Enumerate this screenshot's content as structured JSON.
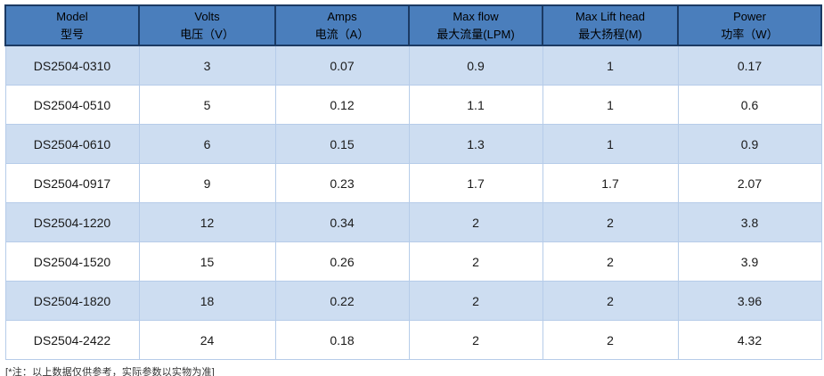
{
  "table": {
    "columns": [
      {
        "en": "Model",
        "zh": "型号"
      },
      {
        "en": "Volts",
        "zh": "电压（V）"
      },
      {
        "en": "Amps",
        "zh": "电流（A）"
      },
      {
        "en": "Max flow",
        "zh": "最大流量(LPM)"
      },
      {
        "en": "Max Lift head",
        "zh": "最大扬程(M)"
      },
      {
        "en": "Power",
        "zh": "功率（W）"
      }
    ],
    "rows": [
      [
        "DS2504-0310",
        "3",
        "0.07",
        "0.9",
        "1",
        "0.17"
      ],
      [
        "DS2504-0510",
        "5",
        "0.12",
        "1.1",
        "1",
        "0.6"
      ],
      [
        "DS2504-0610",
        "6",
        "0.15",
        "1.3",
        "1",
        "0.9"
      ],
      [
        "DS2504-0917",
        "9",
        "0.23",
        "1.7",
        "1.7",
        "2.07"
      ],
      [
        "DS2504-1220",
        "12",
        "0.34",
        "2",
        "2",
        "3.8"
      ],
      [
        "DS2504-1520",
        "15",
        "0.26",
        "2",
        "2",
        "3.9"
      ],
      [
        "DS2504-1820",
        "18",
        "0.22",
        "2",
        "2",
        "3.96"
      ],
      [
        "DS2504-2422",
        "24",
        "0.18",
        "2",
        "2",
        "4.32"
      ]
    ],
    "footnote": "[*注：以上数据仅供参考，实际参数以实物为准]"
  },
  "chart_data": {
    "type": "table",
    "title": "",
    "columns": [
      "Model 型号",
      "Volts 电压（V）",
      "Amps 电流（A）",
      "Max flow 最大流量(LPM)",
      "Max Lift head 最大扬程(M)",
      "Power 功率（W）"
    ],
    "rows": [
      [
        "DS2504-0310",
        3,
        0.07,
        0.9,
        1,
        0.17
      ],
      [
        "DS2504-0510",
        5,
        0.12,
        1.1,
        1,
        0.6
      ],
      [
        "DS2504-0610",
        6,
        0.15,
        1.3,
        1,
        0.9
      ],
      [
        "DS2504-0917",
        9,
        0.23,
        1.7,
        1.7,
        2.07
      ],
      [
        "DS2504-1220",
        12,
        0.34,
        2,
        2,
        3.8
      ],
      [
        "DS2504-1520",
        15,
        0.26,
        2,
        2,
        3.9
      ],
      [
        "DS2504-1820",
        18,
        0.22,
        2,
        2,
        3.96
      ],
      [
        "DS2504-2422",
        24,
        0.18,
        2,
        2,
        4.32
      ]
    ]
  },
  "colors": {
    "header_bg": "#4a7ebc",
    "header_border": "#1b3a63",
    "row_alt_bg": "#cdddf1",
    "row_bg": "#ffffff",
    "body_border": "#b6cce9",
    "text": "#1a1a1a"
  }
}
